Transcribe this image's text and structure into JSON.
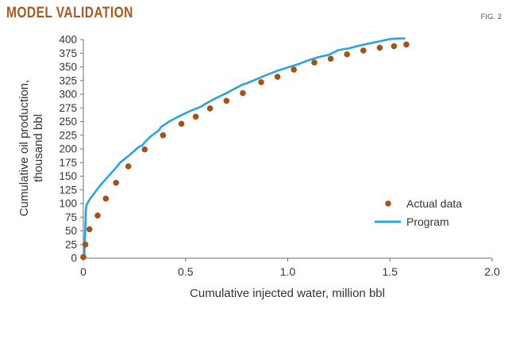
{
  "header": {
    "title": "MODEL VALIDATION",
    "figure_label": "FIG. 2"
  },
  "colors": {
    "title": "#a85a22",
    "actual": "#a5521a",
    "program": "#2ba3dc",
    "axis": "#6e6e6e",
    "tick_text": "#333333"
  },
  "chart_data": {
    "type": "scatter",
    "xlabel": "Cumulative injected water, million bbl",
    "ylabel_lines": [
      "Cumulative oil production,",
      "thousand bbl"
    ],
    "xlim": [
      0,
      2.0
    ],
    "ylim": [
      0,
      400
    ],
    "x_ticks": [
      0,
      0.5,
      1.0,
      1.5,
      2.0
    ],
    "x_tick_labels": [
      "0",
      "0.5",
      "1.0",
      "1.5",
      "2.0"
    ],
    "y_ticks": [
      0,
      25,
      50,
      75,
      100,
      125,
      150,
      175,
      200,
      225,
      250,
      275,
      300,
      325,
      350,
      375,
      400
    ],
    "y_tick_labels": [
      "0",
      "25",
      "50",
      "75",
      "100",
      "125",
      "150",
      "175",
      "200",
      "225",
      "250",
      "275",
      "300",
      "325",
      "350",
      "375",
      "400"
    ],
    "grid": false,
    "legend_position": "right",
    "series": [
      {
        "name": "Actual data",
        "kind": "points",
        "x": [
          0.0,
          0.01,
          0.03,
          0.07,
          0.11,
          0.16,
          0.22,
          0.3,
          0.39,
          0.48,
          0.55,
          0.62,
          0.7,
          0.78,
          0.87,
          0.95,
          1.03,
          1.13,
          1.21,
          1.29,
          1.37,
          1.45,
          1.52,
          1.58
        ],
        "y": [
          2,
          25,
          53,
          78,
          109,
          138,
          168,
          199,
          225,
          246,
          259,
          274,
          288,
          302,
          322,
          332,
          345,
          358,
          365,
          373,
          380,
          385,
          388,
          391
        ]
      },
      {
        "name": "Program",
        "kind": "line",
        "x": [
          0.0,
          0.005,
          0.01,
          0.012,
          0.015,
          0.03,
          0.05,
          0.08,
          0.12,
          0.17,
          0.18,
          0.22,
          0.27,
          0.29,
          0.3,
          0.33,
          0.37,
          0.38,
          0.42,
          0.47,
          0.52,
          0.58,
          0.6,
          0.65,
          0.7,
          0.75,
          0.78,
          0.8,
          0.85,
          0.9,
          0.95,
          1.0,
          1.05,
          1.1,
          1.15,
          1.2,
          1.25,
          1.3,
          1.35,
          1.4,
          1.45,
          1.5,
          1.55,
          1.57
        ],
        "y": [
          0,
          5,
          60,
          85,
          97,
          107,
          117,
          132,
          149,
          170,
          175,
          187,
          203,
          207,
          212,
          223,
          234,
          240,
          250,
          260,
          269,
          278,
          283,
          293,
          302,
          312,
          318,
          320,
          328,
          336,
          343,
          349,
          355,
          362,
          368,
          372,
          381,
          384,
          389,
          393,
          397,
          401,
          403,
          405
        ]
      }
    ]
  }
}
